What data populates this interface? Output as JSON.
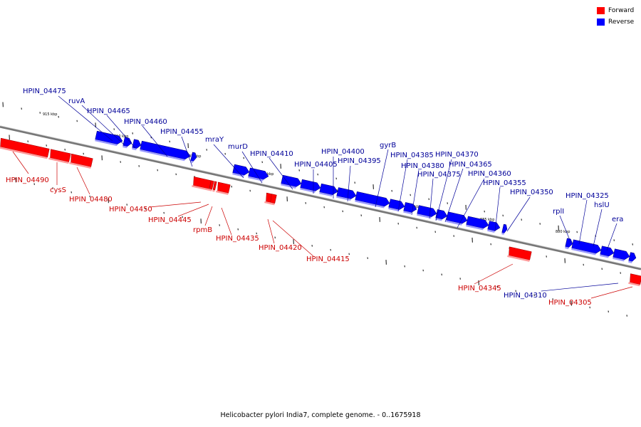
{
  "caption": "Helicobacter pylori India7, complete genome. - 0..1675918",
  "legend": [
    {
      "label": "Forward",
      "color": "#ff0000"
    },
    {
      "label": "Reverse",
      "color": "#0000ff"
    }
  ],
  "colors": {
    "forward": "#ff0000",
    "reverse": "#0000ff",
    "forward_label": "#cc0000",
    "reverse_label": "#000099",
    "axis": "#777777"
  },
  "kbp_marks": [
    "915 kbp",
    "910 kbp",
    "905 kbp",
    "900 kbp",
    "895 kbp",
    "890 kbp",
    "885 kbp",
    "880 kbp"
  ],
  "genes": [
    {
      "label": "HPIN_04490",
      "strand": "forward"
    },
    {
      "label": "cysS",
      "strand": "forward"
    },
    {
      "label": "HPIN_04480",
      "strand": "forward"
    },
    {
      "label": "HPIN_04475",
      "strand": "reverse"
    },
    {
      "label": "ruvA",
      "strand": "reverse"
    },
    {
      "label": "HPIN_04465",
      "strand": "reverse"
    },
    {
      "label": "HPIN_04460",
      "strand": "reverse"
    },
    {
      "label": "HPIN_04455",
      "strand": "reverse"
    },
    {
      "label": "HPIN_04450",
      "strand": "forward"
    },
    {
      "label": "HPIN_04445",
      "strand": "forward"
    },
    {
      "label": "rpmB",
      "strand": "forward"
    },
    {
      "label": "HPIN_04435",
      "strand": "forward"
    },
    {
      "label": "mraY",
      "strand": "reverse"
    },
    {
      "label": "murD",
      "strand": "reverse"
    },
    {
      "label": "HPIN_04420",
      "strand": "forward"
    },
    {
      "label": "HPIN_04415",
      "strand": "forward"
    },
    {
      "label": "HPIN_04410",
      "strand": "reverse"
    },
    {
      "label": "HPIN_04405",
      "strand": "reverse"
    },
    {
      "label": "HPIN_04400",
      "strand": "reverse"
    },
    {
      "label": "HPIN_04395",
      "strand": "reverse"
    },
    {
      "label": "gyrB",
      "strand": "reverse"
    },
    {
      "label": "HPIN_04385",
      "strand": "reverse"
    },
    {
      "label": "HPIN_04380",
      "strand": "reverse"
    },
    {
      "label": "HPIN_04375",
      "strand": "reverse"
    },
    {
      "label": "HPIN_04370",
      "strand": "reverse"
    },
    {
      "label": "HPIN_04365",
      "strand": "reverse"
    },
    {
      "label": "HPIN_04360",
      "strand": "reverse"
    },
    {
      "label": "HPIN_04355",
      "strand": "reverse"
    },
    {
      "label": "HPIN_04350",
      "strand": "reverse"
    },
    {
      "label": "HPIN_04345",
      "strand": "forward"
    },
    {
      "label": "rplI",
      "strand": "reverse"
    },
    {
      "label": "HPIN_04325",
      "strand": "reverse"
    },
    {
      "label": "hslU",
      "strand": "reverse"
    },
    {
      "label": "era",
      "strand": "reverse"
    },
    {
      "label": "HPIN_04310",
      "strand": "reverse"
    },
    {
      "label": "HPIN_04305",
      "strand": "forward"
    }
  ]
}
